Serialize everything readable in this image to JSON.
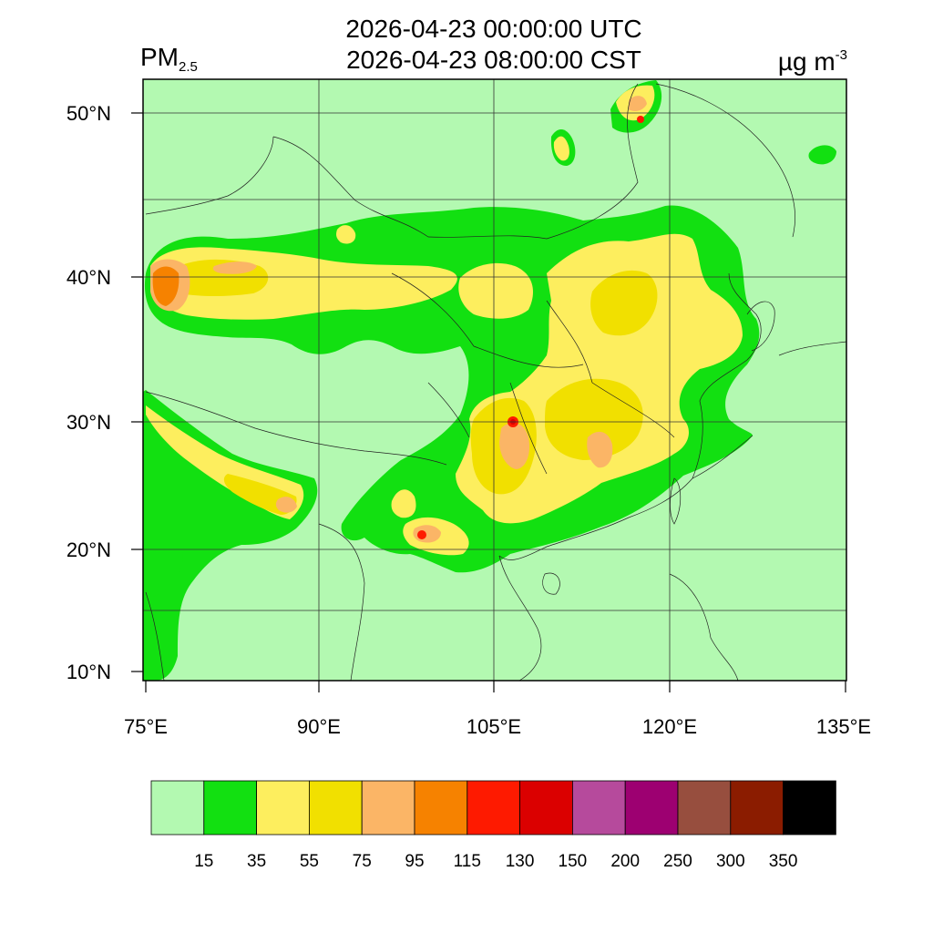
{
  "header": {
    "title_utc": "2026-04-23 00:00:00 UTC",
    "title_cst": "2026-04-23 08:00:00 CST",
    "variable_main": "PM",
    "variable_sub": "2.5",
    "unit_main": "µg m",
    "unit_sup": "-3"
  },
  "map": {
    "lon_range": [
      75,
      135
    ],
    "lat_range": [
      9,
      52
    ],
    "x_ticks": [
      {
        "lon": 75,
        "label": "75°E"
      },
      {
        "lon": 90,
        "label": "90°E"
      },
      {
        "lon": 105,
        "label": "105°E"
      },
      {
        "lon": 120,
        "label": "120°E"
      },
      {
        "lon": 135,
        "label": "135°E"
      }
    ],
    "y_ticks": [
      {
        "lat": 10,
        "label": "10°N"
      },
      {
        "lat": 20,
        "label": "20°N"
      },
      {
        "lat": 30,
        "label": "30°N"
      },
      {
        "lat": 40,
        "label": "40°N"
      },
      {
        "lat": 50,
        "label": "50°N"
      }
    ],
    "gridlines": true,
    "background_class_color": "#b3f9b1"
  },
  "colorbar": {
    "colors": [
      "#b3f9b1",
      "#12e011",
      "#fdee5e",
      "#f1e000",
      "#fbb566",
      "#f68200",
      "#fe1a00",
      "#db0000",
      "#b64a9c",
      "#9d0071",
      "#974e3e",
      "#8b1c00",
      "#000000"
    ],
    "labels": [
      "15",
      "35",
      "55",
      "75",
      "95",
      "115",
      "130",
      "150",
      "200",
      "250",
      "300",
      "350"
    ]
  }
}
